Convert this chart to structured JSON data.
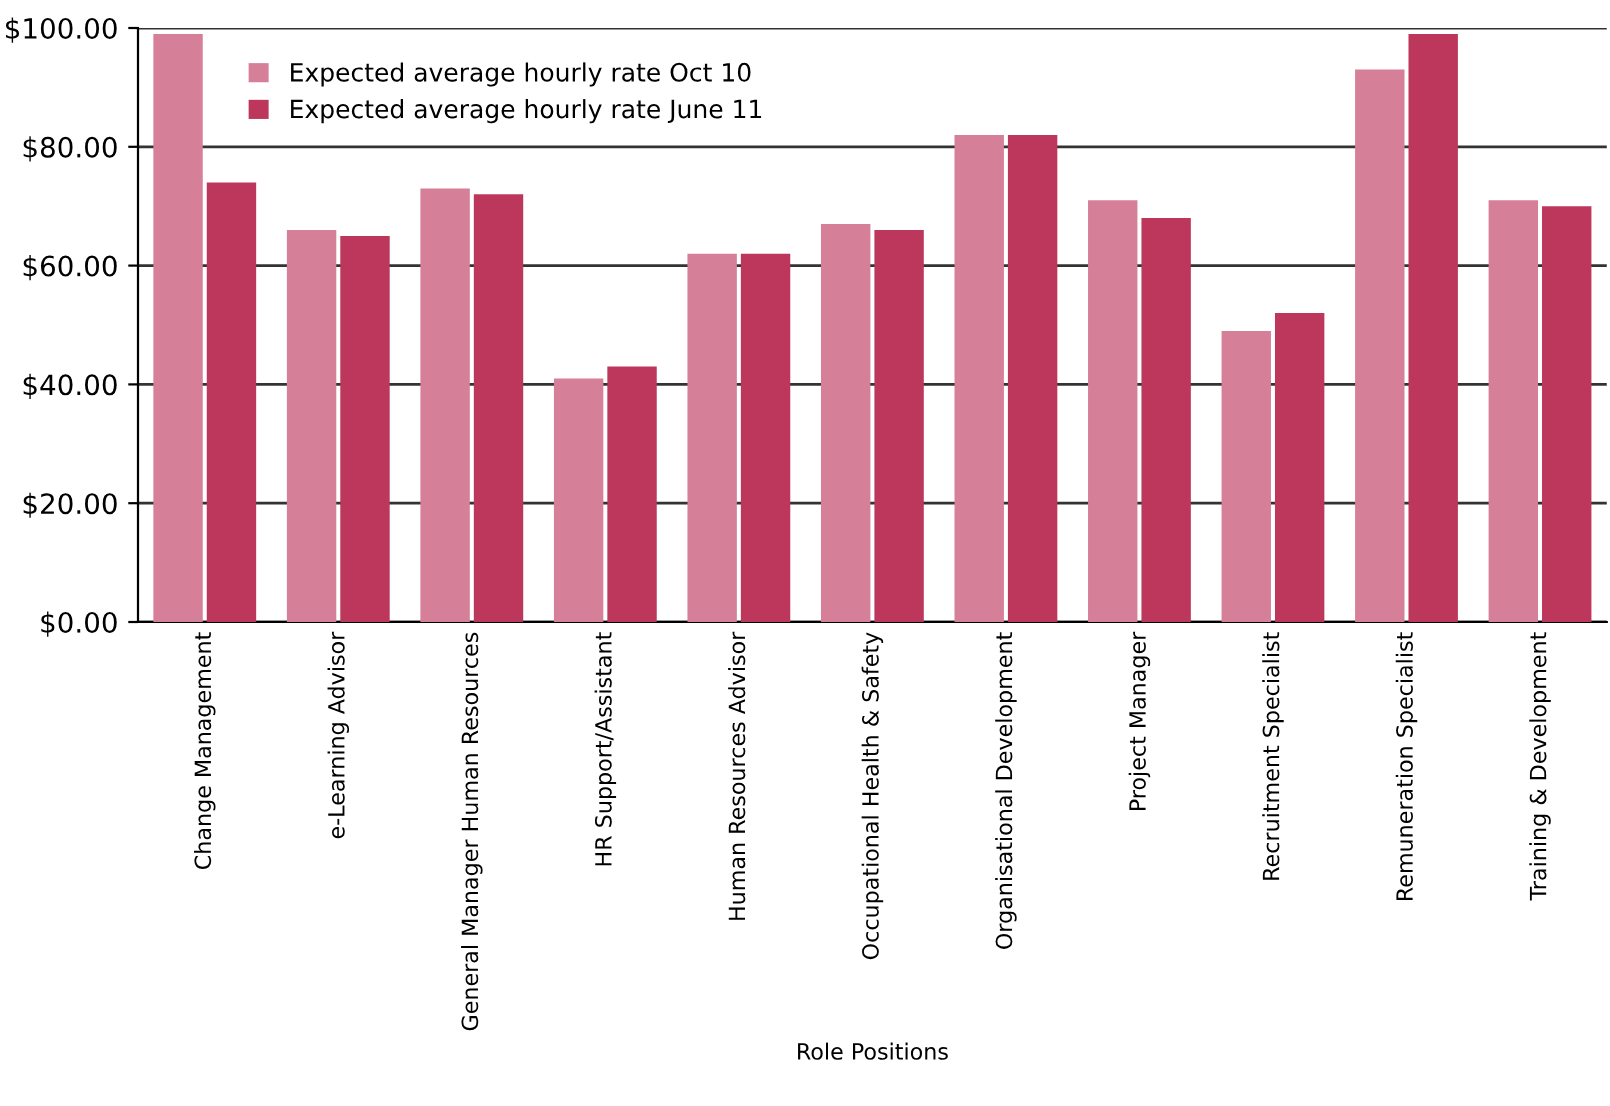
{
  "chart_data": {
    "type": "bar",
    "xlabel": "Role Positions",
    "categories": [
      "Change Management",
      "e-Learning Advisor",
      "General Manager Human Resources",
      "HR Support/Assistant",
      "Human Resources Advisor",
      "Occupational Health & Safety",
      "Organisational Development",
      "Project Manager",
      "Recruitment Specialist",
      "Remuneration Specialist",
      "Training & Development"
    ],
    "series": [
      {
        "name": "Expected average hourly rate Oct 10",
        "color": "#d67f98",
        "values": [
          99,
          66,
          73,
          41,
          62,
          67,
          82,
          71,
          49,
          93,
          71
        ]
      },
      {
        "name": "Expected average hourly rate June 11",
        "color": "#bc375b",
        "values": [
          74,
          65,
          72,
          43,
          62,
          66,
          82,
          68,
          52,
          99,
          70
        ]
      }
    ],
    "ylim": [
      0,
      100
    ],
    "yticks": [
      {
        "value": 0,
        "label": "$0.00"
      },
      {
        "value": 20,
        "label": "$20.00"
      },
      {
        "value": 40,
        "label": "$40.00"
      },
      {
        "value": 60,
        "label": "$60.00"
      },
      {
        "value": 80,
        "label": "$80.00"
      },
      {
        "value": 100,
        "label": "$100.00"
      }
    ],
    "grid": "y",
    "legend": "top left"
  }
}
